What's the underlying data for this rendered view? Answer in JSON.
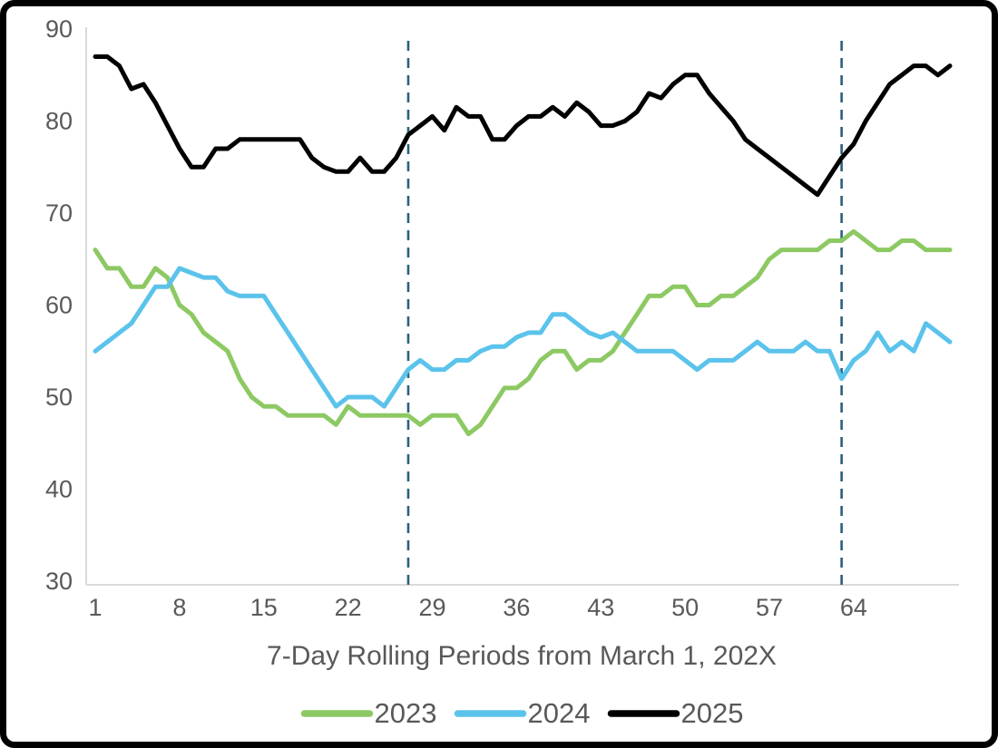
{
  "chart_data": {
    "type": "line",
    "xlabel": "7-Day Rolling Periods from March 1, 202X",
    "ylabel": "",
    "title": "",
    "x_start": 1,
    "num_periods": 72,
    "x_ticks": [
      1,
      8,
      15,
      22,
      29,
      36,
      43,
      50,
      57,
      64
    ],
    "y_ticks": [
      30,
      40,
      50,
      60,
      70,
      80,
      90
    ],
    "ylim": [
      30,
      90
    ],
    "xlim": [
      1,
      72
    ],
    "grid": false,
    "legend_position": "bottom",
    "vlines": {
      "at_periods": [
        27,
        63
      ],
      "style": "dashed",
      "color": "#2B617E"
    },
    "series": [
      {
        "name": "2023",
        "color": "#8DC963",
        "values": [
          66,
          64,
          64,
          62,
          62,
          64,
          63,
          60,
          59,
          57,
          56,
          55,
          52,
          50,
          49,
          49,
          48,
          48,
          48,
          48,
          47,
          49,
          48,
          48,
          48,
          48,
          48,
          47,
          48,
          48,
          48,
          46,
          47,
          49,
          51,
          51,
          52,
          54,
          55,
          55,
          53,
          54,
          54,
          55,
          57,
          59,
          61,
          61,
          62,
          62,
          60,
          60,
          61,
          61,
          62,
          63,
          65,
          66,
          66,
          66,
          66,
          67,
          67,
          68,
          67,
          66,
          66,
          67,
          67,
          66,
          66,
          66
        ]
      },
      {
        "name": "2024",
        "color": "#5BC3EB",
        "values": [
          55,
          56,
          57,
          58,
          60,
          62,
          62,
          64,
          63.5,
          63,
          63,
          61.5,
          61,
          61,
          61,
          59,
          57,
          55,
          53,
          51,
          49,
          50,
          50,
          50,
          49,
          51,
          53,
          54,
          53,
          53,
          54,
          54,
          55,
          55.5,
          55.5,
          56.5,
          57,
          57,
          59,
          59,
          58,
          57,
          56.5,
          57,
          56,
          55,
          55,
          55,
          55,
          54,
          53,
          54,
          54,
          54,
          55,
          56,
          55,
          55,
          55,
          56,
          55,
          55,
          52,
          54,
          55,
          57,
          55,
          56,
          55,
          58,
          57,
          56
        ]
      },
      {
        "name": "2025",
        "color": "#000000",
        "values": [
          87,
          87,
          86,
          83.5,
          84,
          82,
          79.5,
          77,
          75,
          75,
          77,
          77,
          78,
          78,
          78,
          78,
          78,
          78,
          76,
          75,
          74.5,
          74.5,
          76,
          74.5,
          74.5,
          76,
          78.5,
          79.5,
          80.5,
          79,
          81.5,
          80.5,
          80.5,
          78,
          78,
          79.5,
          80.5,
          80.5,
          81.5,
          80.5,
          82,
          81,
          79.5,
          79.5,
          80,
          81,
          83,
          82.5,
          84,
          85,
          85,
          83,
          81.5,
          80,
          78,
          77,
          76,
          75,
          74,
          73,
          72,
          74,
          76,
          77.5,
          80,
          82,
          84,
          85,
          86,
          86,
          85,
          86
        ]
      }
    ]
  },
  "styles": {
    "background": "#FFFFFF",
    "frame_color": "#000000",
    "tick_label_color": "#595959",
    "axis_title_color": "#595959",
    "legend_text_color": "#595959",
    "axis_line_color": "#D9D9D9"
  }
}
